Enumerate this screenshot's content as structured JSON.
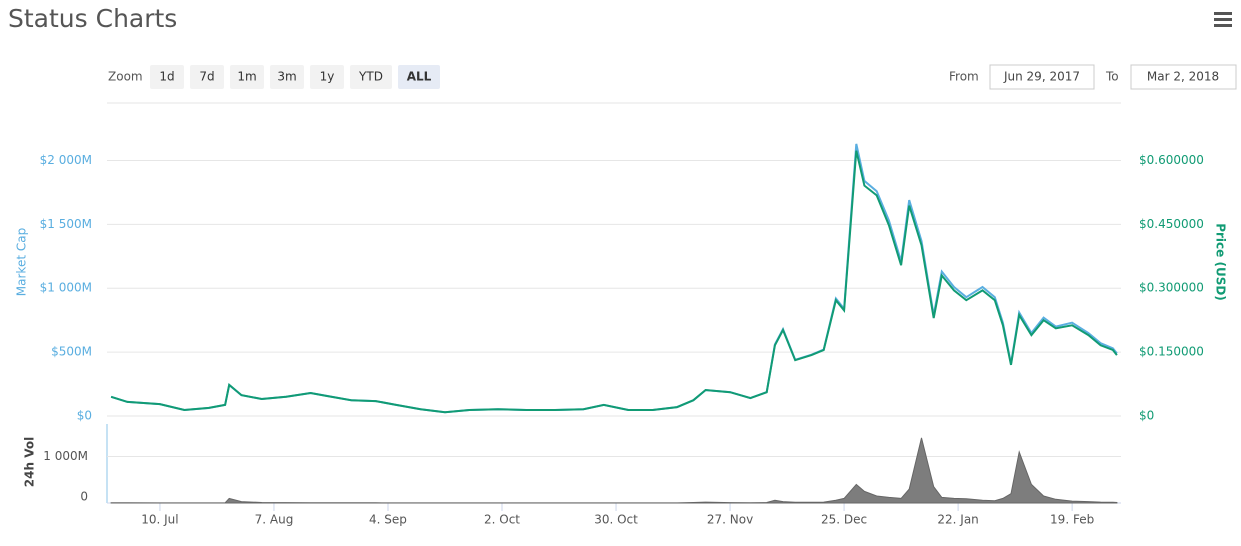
{
  "title": "Status Charts",
  "controls": {
    "zoom_label": "Zoom",
    "buttons": [
      "1d",
      "7d",
      "1m",
      "3m",
      "1y",
      "YTD",
      "ALL"
    ],
    "active": 6,
    "from_label": "From",
    "from": "Jun 29, 2017",
    "to_label": "To",
    "to": "Mar 2, 2018"
  },
  "chart_data": [
    {
      "type": "line",
      "ylabel": "Market Cap",
      "y2label": "Price (USD)",
      "grid": true,
      "xlim": [
        "2017-06-27",
        "2018-03-03"
      ],
      "x": [
        "2017-06-28",
        "2017-07-02",
        "2017-07-10",
        "2017-07-16",
        "2017-07-22",
        "2017-07-26",
        "2017-07-27",
        "2017-07-30",
        "2017-08-04",
        "2017-08-10",
        "2017-08-16",
        "2017-08-20",
        "2017-08-26",
        "2017-09-01",
        "2017-09-06",
        "2017-09-12",
        "2017-09-18",
        "2017-09-24",
        "2017-10-01",
        "2017-10-08",
        "2017-10-15",
        "2017-10-22",
        "2017-10-27",
        "2017-11-02",
        "2017-11-08",
        "2017-11-14",
        "2017-11-18",
        "2017-11-21",
        "2017-11-27",
        "2017-12-02",
        "2017-12-06",
        "2017-12-08",
        "2017-12-10",
        "2017-12-13",
        "2017-12-17",
        "2017-12-20",
        "2017-12-23",
        "2017-12-25",
        "2017-12-28",
        "2017-12-30",
        "2018-01-02",
        "2018-01-05",
        "2018-01-08",
        "2018-01-10",
        "2018-01-13",
        "2018-01-16",
        "2018-01-18",
        "2018-01-21",
        "2018-01-24",
        "2018-01-28",
        "2018-01-31",
        "2018-02-02",
        "2018-02-04",
        "2018-02-06",
        "2018-02-09",
        "2018-02-12",
        "2018-02-15",
        "2018-02-19",
        "2018-02-23",
        "2018-02-26",
        "2018-03-01",
        "2018-03-02"
      ],
      "ylim": [
        0,
        2450
      ],
      "yticks": [
        {
          "value": 0,
          "label": "$0"
        },
        {
          "value": 500,
          "label": "$500M"
        },
        {
          "value": 1000,
          "label": "$1 000M"
        },
        {
          "value": 1500,
          "label": "$1 500M"
        },
        {
          "value": 2000,
          "label": "$2 000M"
        }
      ],
      "y2lim": [
        0,
        0.735
      ],
      "y2ticks": [
        {
          "value": 0,
          "label": "$0"
        },
        {
          "value": 0.15,
          "label": "$0.150000"
        },
        {
          "value": 0.3,
          "label": "$0.300000"
        },
        {
          "value": 0.45,
          "label": "$0.450000"
        },
        {
          "value": 0.6,
          "label": "$0.600000"
        }
      ],
      "series": [
        {
          "color": "#5aaee0",
          "axis": "y",
          "values": [
            150,
            110,
            93,
            47,
            63,
            87,
            243,
            163,
            133,
            150,
            180,
            157,
            123,
            117,
            87,
            53,
            30,
            47,
            53,
            47,
            47,
            53,
            87,
            47,
            47,
            70,
            123,
            203,
            187,
            140,
            187,
            560,
            680,
            440,
            480,
            520,
            920,
            840,
            2130,
            1840,
            1760,
            1530,
            1210,
            1690,
            1370,
            790,
            1130,
            1010,
            930,
            1010,
            930,
            730,
            410,
            810,
            650,
            770,
            700,
            730,
            650,
            570,
            530,
            490
          ]
        },
        {
          "color": "#119b74",
          "axis": "y2",
          "values": [
            0.045,
            0.033,
            0.028,
            0.014,
            0.019,
            0.026,
            0.073,
            0.049,
            0.04,
            0.045,
            0.054,
            0.047,
            0.037,
            0.035,
            0.026,
            0.016,
            0.009,
            0.014,
            0.016,
            0.014,
            0.014,
            0.016,
            0.026,
            0.014,
            0.014,
            0.021,
            0.037,
            0.061,
            0.056,
            0.042,
            0.056,
            0.166,
            0.202,
            0.131,
            0.143,
            0.155,
            0.272,
            0.248,
            0.623,
            0.541,
            0.518,
            0.448,
            0.354,
            0.494,
            0.401,
            0.23,
            0.33,
            0.295,
            0.272,
            0.295,
            0.272,
            0.213,
            0.12,
            0.237,
            0.19,
            0.225,
            0.206,
            0.213,
            0.19,
            0.166,
            0.155,
            0.143
          ]
        }
      ]
    },
    {
      "type": "area",
      "ylabel": "24h Vol",
      "grid": true,
      "xlim": [
        "2017-06-27",
        "2018-03-03"
      ],
      "xticks": [
        {
          "value": "2017-07-10",
          "label": "10. Jul"
        },
        {
          "value": "2017-08-07",
          "label": "7. Aug"
        },
        {
          "value": "2017-09-04",
          "label": "4. Sep"
        },
        {
          "value": "2017-10-02",
          "label": "2. Oct"
        },
        {
          "value": "2017-10-30",
          "label": "30. Oct"
        },
        {
          "value": "2017-11-27",
          "label": "27. Nov"
        },
        {
          "value": "2017-12-25",
          "label": "25. Dec"
        },
        {
          "value": "2018-01-22",
          "label": "22. Jan"
        },
        {
          "value": "2018-02-19",
          "label": "19. Feb"
        }
      ],
      "x": [
        "2017-06-28",
        "2017-07-02",
        "2017-07-10",
        "2017-07-16",
        "2017-07-22",
        "2017-07-26",
        "2017-07-27",
        "2017-07-30",
        "2017-08-04",
        "2017-08-10",
        "2017-08-16",
        "2017-08-20",
        "2017-08-26",
        "2017-09-01",
        "2017-09-06",
        "2017-09-12",
        "2017-09-18",
        "2017-09-24",
        "2017-10-01",
        "2017-10-08",
        "2017-10-15",
        "2017-10-22",
        "2017-10-27",
        "2017-11-02",
        "2017-11-08",
        "2017-11-14",
        "2017-11-18",
        "2017-11-21",
        "2017-11-27",
        "2017-12-02",
        "2017-12-06",
        "2017-12-08",
        "2017-12-10",
        "2017-12-13",
        "2017-12-17",
        "2017-12-20",
        "2017-12-23",
        "2017-12-25",
        "2017-12-28",
        "2017-12-30",
        "2018-01-02",
        "2018-01-05",
        "2018-01-08",
        "2018-01-10",
        "2018-01-13",
        "2018-01-16",
        "2018-01-18",
        "2018-01-21",
        "2018-01-24",
        "2018-01-28",
        "2018-01-31",
        "2018-02-02",
        "2018-02-04",
        "2018-02-06",
        "2018-02-09",
        "2018-02-12",
        "2018-02-15",
        "2018-02-19",
        "2018-02-23",
        "2018-02-26",
        "2018-03-01",
        "2018-03-02"
      ],
      "ylim": [
        0,
        1700
      ],
      "yticks": [
        0,
        {
          "value": 1000,
          "label": "1 000M"
        }
      ],
      "color": "#666666",
      "values": [
        5,
        5,
        3,
        3,
        3,
        4,
        100,
        30,
        10,
        8,
        6,
        6,
        5,
        4,
        3,
        3,
        2,
        2,
        2,
        2,
        2,
        2,
        3,
        2,
        2,
        3,
        10,
        20,
        8,
        5,
        10,
        60,
        30,
        15,
        15,
        20,
        60,
        100,
        400,
        250,
        150,
        120,
        100,
        300,
        1400,
        350,
        120,
        100,
        90,
        60,
        50,
        100,
        200,
        1100,
        400,
        150,
        80,
        40,
        30,
        20,
        15,
        10
      ]
    }
  ]
}
